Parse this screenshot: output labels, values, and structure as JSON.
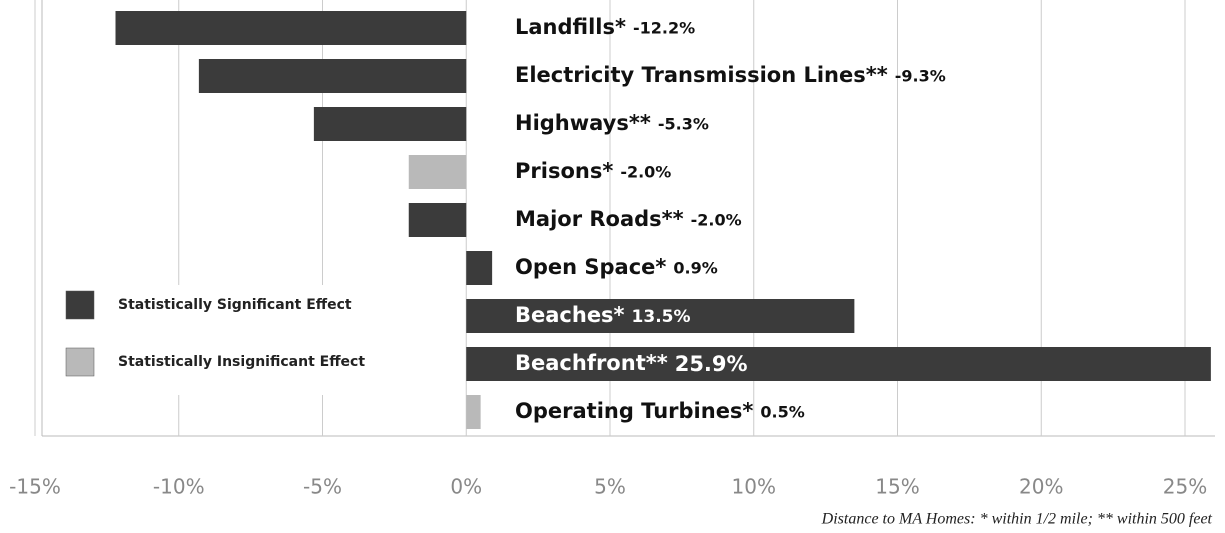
{
  "chart_data": {
    "type": "hbar",
    "categories": [
      "Landfills*",
      "Electricity Transmission Lines**",
      "Highways**",
      "Prisons*",
      "Major Roads**",
      "Open Space*",
      "Beaches*",
      "Beachfront**",
      "Operating Turbines*"
    ],
    "values": [
      -12.2,
      -9.3,
      -5.3,
      -2.0,
      -2.0,
      0.9,
      13.5,
      25.9,
      0.5
    ],
    "value_labels": [
      "-12.2%",
      "-9.3%",
      "-5.3%",
      "-2.0%",
      "-2.0%",
      "0.9%",
      "13.5%",
      "25.9%",
      "0.5%"
    ],
    "colors": [
      "#3b3b3b",
      "#3b3b3b",
      "#3b3b3b",
      "#b9b9b9",
      "#3b3b3b",
      "#3b3b3b",
      "#3b3b3b",
      "#3b3b3b",
      "#b9b9b9"
    ],
    "legend": [
      {
        "name": "Statistically Significant Effect",
        "color": "#3b3b3b"
      },
      {
        "name": "Statistically Insignificant Effect",
        "color": "#b9b9b9"
      }
    ],
    "xlim": [
      -15,
      25
    ],
    "xticks": [
      {
        "value": -15,
        "label": "-15%"
      },
      {
        "value": -10,
        "label": "-10%"
      },
      {
        "value": -5,
        "label": "-5%"
      },
      {
        "value": 0,
        "label": "0%"
      },
      {
        "value": 5,
        "label": "5%"
      },
      {
        "value": 10,
        "label": "10%"
      },
      {
        "value": 15,
        "label": "15%"
      },
      {
        "value": 20,
        "label": "20%"
      },
      {
        "value": 25,
        "label": "25%"
      }
    ],
    "grid": true,
    "footnote": "Distance to MA Homes: * within 1/2 mile; ** within 500 feet"
  }
}
